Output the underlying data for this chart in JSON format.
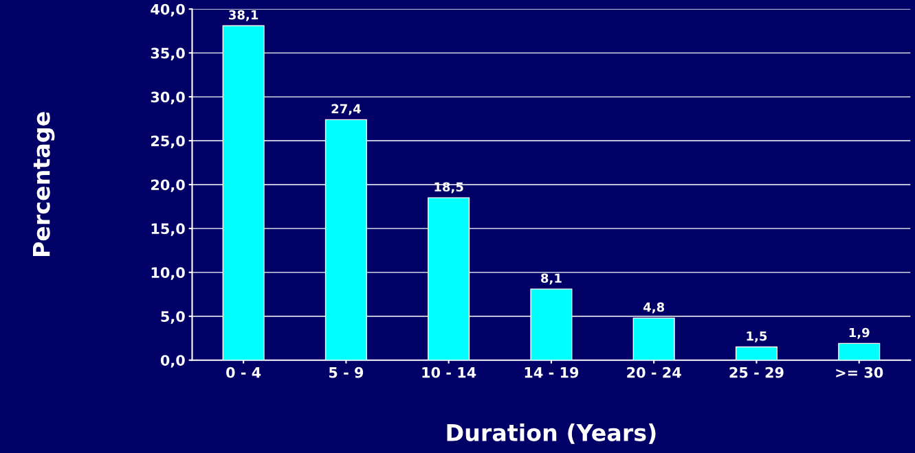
{
  "chart_data": {
    "type": "bar",
    "xlabel": "Duration (Years)",
    "ylabel": "Percentage",
    "categories": [
      "0 - 4",
      "5 - 9",
      "10 - 14",
      "14 - 19",
      "20 - 24",
      "25 - 29",
      ">= 30"
    ],
    "values": [
      38.1,
      27.4,
      18.5,
      8.1,
      4.8,
      1.5,
      1.9
    ],
    "value_labels": [
      "38,1",
      "27,4",
      "18,5",
      "8,1",
      "4,8",
      "1,5",
      "1,9"
    ],
    "color": "#00ffff",
    "ylim": [
      0,
      40
    ],
    "yticks": [
      {
        "value": 0,
        "label": "0,0"
      },
      {
        "value": 5,
        "label": "5,0"
      },
      {
        "value": 10,
        "label": "10,0"
      },
      {
        "value": 15,
        "label": "15,0"
      },
      {
        "value": 20,
        "label": "20,0"
      },
      {
        "value": 25,
        "label": "25,0"
      },
      {
        "value": 30,
        "label": "30,0"
      },
      {
        "value": 35,
        "label": "35,0"
      },
      {
        "value": 40,
        "label": "40,0"
      }
    ],
    "grid": "y",
    "legend": false
  }
}
